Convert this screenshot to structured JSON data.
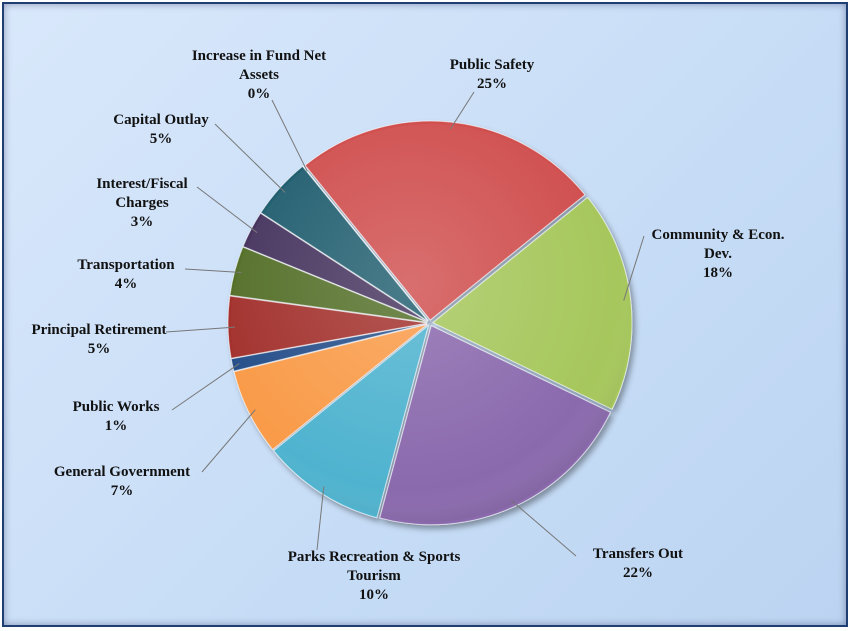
{
  "chart_data": {
    "type": "pie",
    "categories": [
      "Public Safety",
      "Community & Econ. Dev.",
      "Transfers Out",
      "Parks Recreation & Sports Tourism",
      "General Government",
      "Public Works",
      "Principal Retirement",
      "Transportation",
      "Interest/Fiscal Charges",
      "Capital Outlay",
      "Increase in Fund Net Assets"
    ],
    "values": [
      25,
      18,
      22,
      10,
      7,
      1,
      5,
      4,
      3,
      5,
      0
    ],
    "value_labels": [
      "25%",
      "18%",
      "22%",
      "10%",
      "7%",
      "1%",
      "5%",
      "4%",
      "3%",
      "5%",
      "0%"
    ],
    "colors": [
      "#d0504f",
      "#a6c75c",
      "#8a69ad",
      "#4fb3cf",
      "#f99b4a",
      "#28508a",
      "#a3302d",
      "#54702c",
      "#46365f",
      "#225e70",
      "#e6781c"
    ]
  }
}
